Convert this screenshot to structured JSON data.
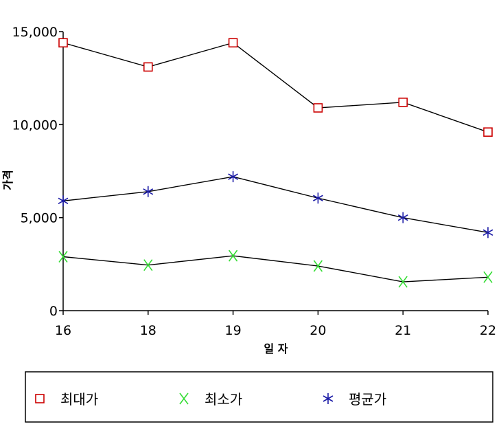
{
  "chart_data": {
    "type": "line",
    "title": "",
    "xlabel": "일  자",
    "ylabel": "가격",
    "categories": [
      "16",
      "18",
      "19",
      "20",
      "21",
      "22"
    ],
    "ylim": [
      0,
      15000
    ],
    "yticks": [
      0,
      5000,
      10000,
      15000
    ],
    "ytick_labels": [
      "0",
      "5,000",
      "10,000",
      "15,000"
    ],
    "grid": false,
    "legend_position": "bottom",
    "series": [
      {
        "name": "최대가",
        "values": [
          14400,
          13100,
          14400,
          10900,
          11200,
          9600
        ],
        "color": "#cc0000",
        "marker": "square"
      },
      {
        "name": "최소가",
        "values": [
          2900,
          2450,
          2950,
          2400,
          1550,
          1800
        ],
        "color": "#33dd33",
        "marker": "x"
      },
      {
        "name": "평균가",
        "values": [
          5900,
          6400,
          7200,
          6050,
          5000,
          4200
        ],
        "color": "#1a1aa6",
        "marker": "asterisk"
      }
    ]
  }
}
